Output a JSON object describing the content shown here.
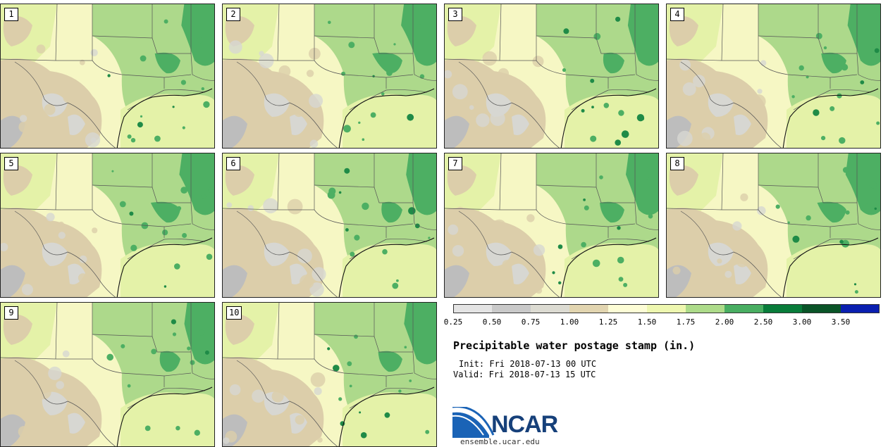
{
  "panels": [
    {
      "label": "1"
    },
    {
      "label": "2"
    },
    {
      "label": "3"
    },
    {
      "label": "4"
    },
    {
      "label": "5"
    },
    {
      "label": "6"
    },
    {
      "label": "7"
    },
    {
      "label": "8"
    },
    {
      "label": "9"
    },
    {
      "label": "10"
    }
  ],
  "colorbar": {
    "labels": [
      "0.25",
      "0.50",
      "0.75",
      "1.00",
      "1.25",
      "1.50",
      "1.75",
      "2.00",
      "2.50",
      "3.00",
      "3.50"
    ],
    "colors": [
      "#e4e4e4",
      "#c9c9c9",
      "#dcdbd2",
      "#e2d5b0",
      "#fdfdd6",
      "#eef7b0",
      "#addb8a",
      "#49ae62",
      "#087c3a",
      "#0a5428",
      "#0a1fb0"
    ]
  },
  "title": "Precipitable water postage stamp (in.)",
  "init": "Init: Fri 2018-07-13 00 UTC",
  "valid": "Valid: Fri 2018-07-13 15 UTC",
  "logo": {
    "text": "NCAR",
    "colors": {
      "swoosh": "#1a63b6",
      "text": "#16407a"
    }
  },
  "website": "ensemble.ucar.edu"
}
